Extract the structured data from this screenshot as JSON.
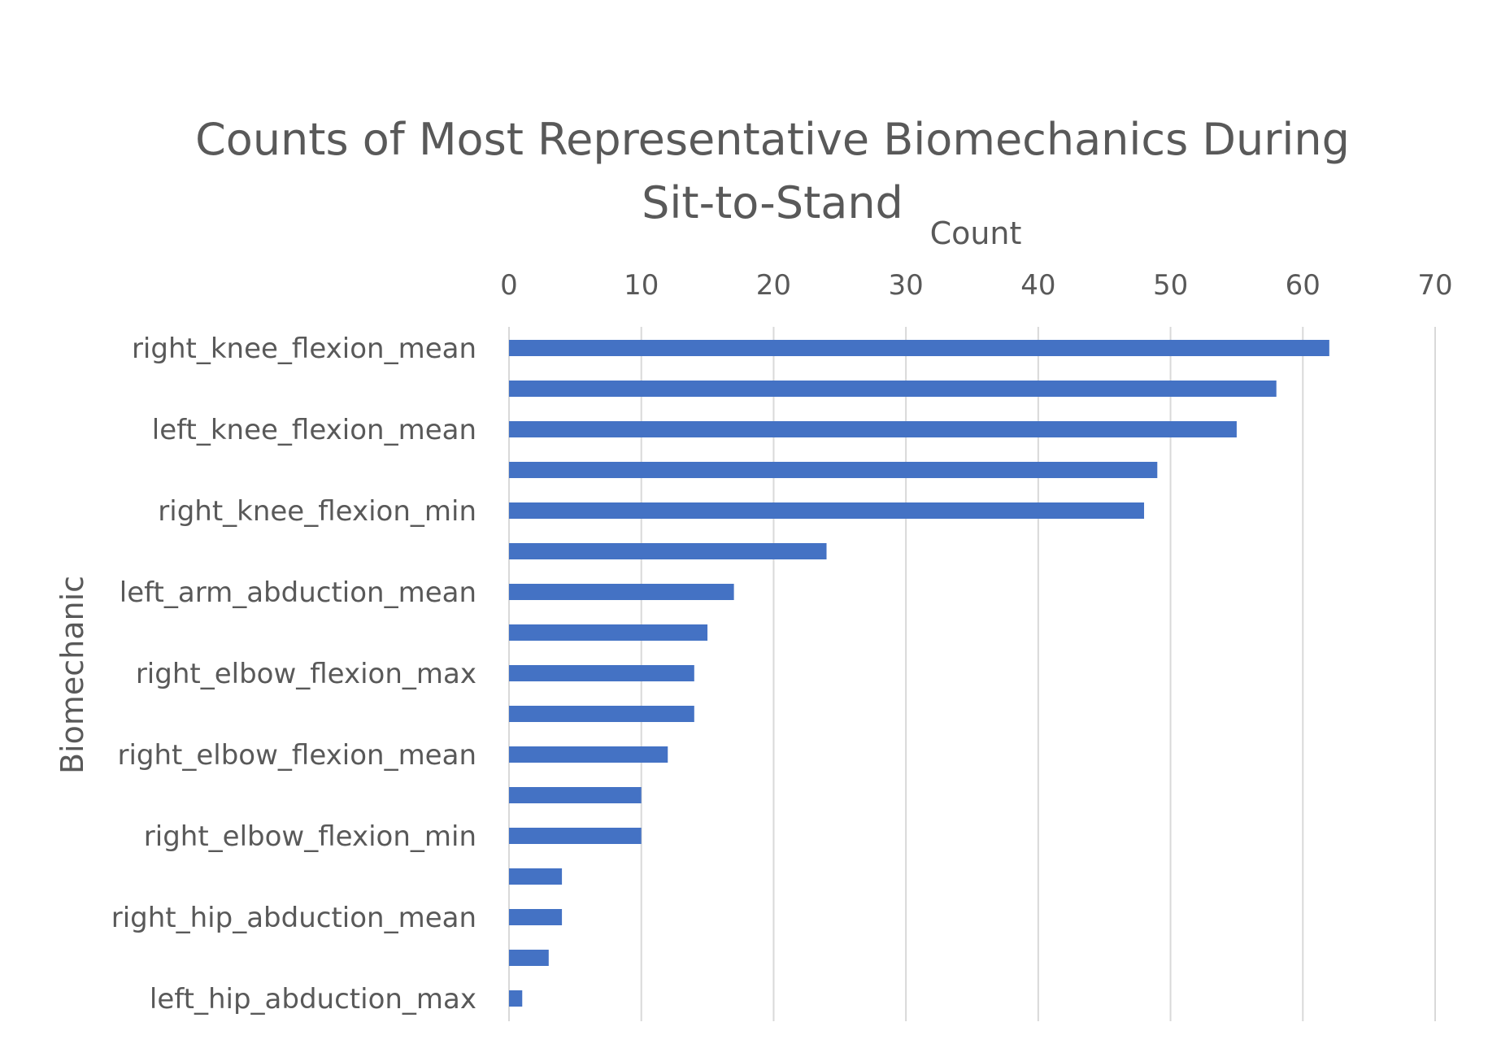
{
  "chart_data": {
    "type": "bar",
    "orientation": "horizontal",
    "title": [
      "Counts of Most Representative Biomechanics During",
      "Sit-to-Stand"
    ],
    "xlabel": "Count",
    "ylabel": "Biomechanic",
    "xlim": [
      0,
      70
    ],
    "xticks": [
      0,
      10,
      20,
      30,
      40,
      50,
      60,
      70
    ],
    "x_axis_position": "top",
    "grid": true,
    "bar_color": "#4472c4",
    "grid_color": "#d9d9d9",
    "text_color": "#595959",
    "categories": [
      "right_knee_flexion_mean",
      "",
      "left_knee_flexion_mean",
      "",
      "right_knee_flexion_min",
      "",
      "left_arm_abduction_mean",
      "",
      "right_elbow_flexion_max",
      "",
      "right_elbow_flexion_mean",
      "",
      "right_elbow_flexion_min",
      "",
      "right_hip_abduction_mean",
      "",
      "left_hip_abduction_max"
    ],
    "values": [
      62,
      58,
      55,
      49,
      48,
      24,
      17,
      15,
      14,
      14,
      12,
      10,
      10,
      4,
      4,
      3,
      1
    ]
  }
}
